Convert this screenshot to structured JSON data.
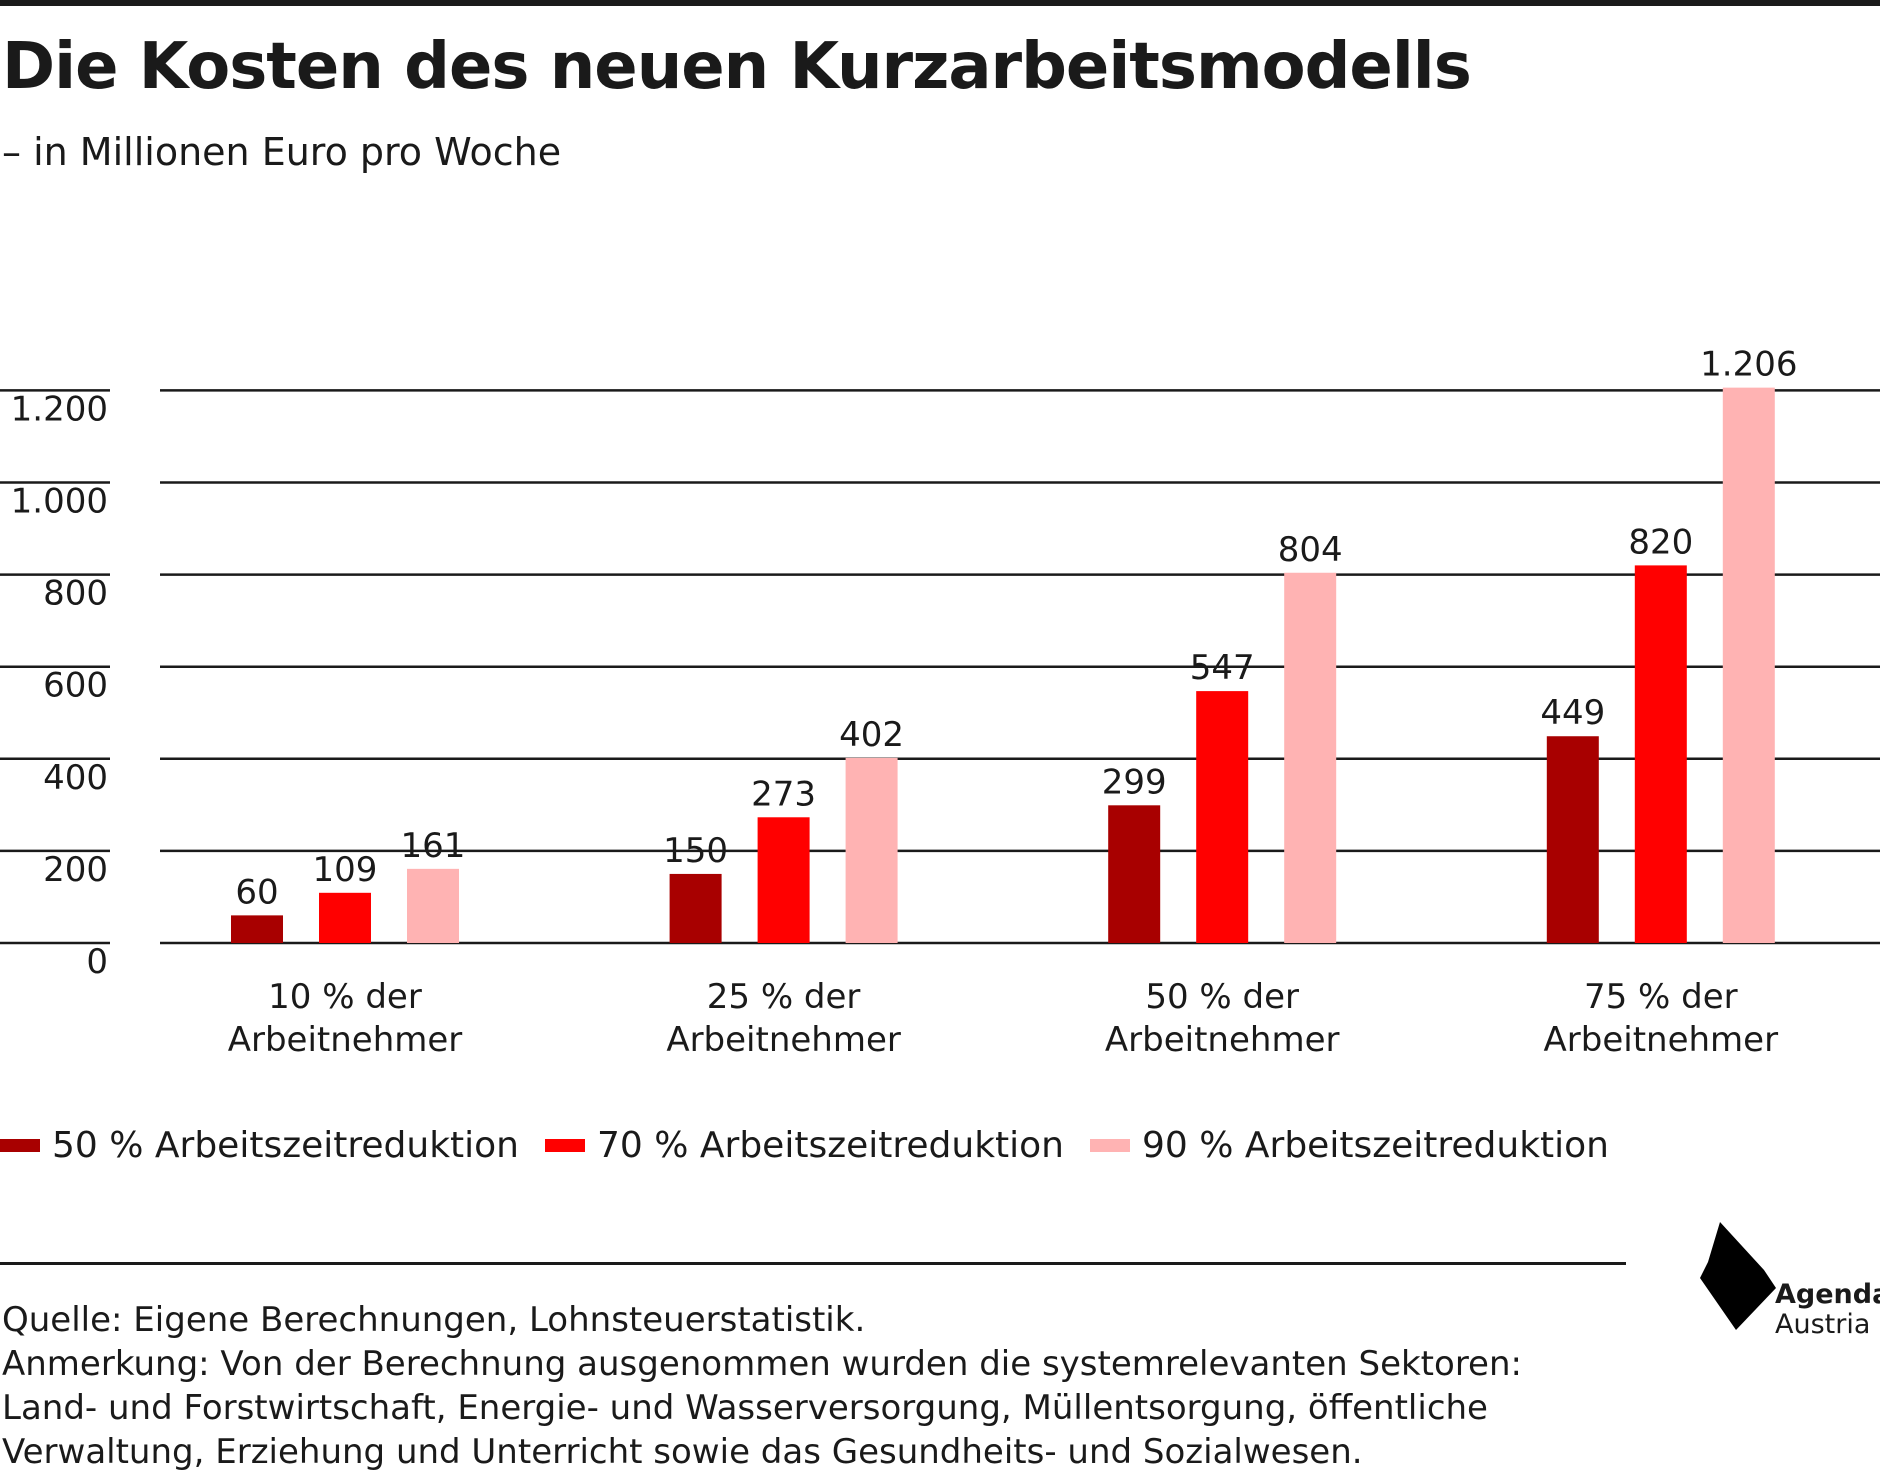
{
  "header": {
    "title": "Die Kosten des neuen Kurzarbeitsmodells",
    "subtitle": "– in Millionen Euro pro Woche"
  },
  "chart_data": {
    "type": "bar",
    "categories": [
      [
        "10 % der",
        "Arbeitnehmer"
      ],
      [
        "25 % der",
        "Arbeitnehmer"
      ],
      [
        "50 % der",
        "Arbeitnehmer"
      ],
      [
        "75 % der",
        "Arbeitnehmer"
      ]
    ],
    "series": [
      {
        "name": "50 % Arbeitszeitreduktion",
        "color": "#a80000",
        "values": [
          60,
          150,
          299,
          449
        ]
      },
      {
        "name": "70 % Arbeitszeitreduktion",
        "color": "#ff0000",
        "values": [
          109,
          273,
          547,
          820
        ]
      },
      {
        "name": "90 % Arbeitszeitreduktion",
        "color": "#ffb3b3",
        "values": [
          161,
          402,
          804,
          1206
        ]
      }
    ],
    "value_labels": [
      [
        "60",
        "150",
        "299",
        "449"
      ],
      [
        "109",
        "273",
        "547",
        "820"
      ],
      [
        "161",
        "402",
        "804",
        "1.206"
      ]
    ],
    "yticks": [
      0,
      200,
      400,
      600,
      800,
      1000,
      1200
    ],
    "ytick_labels": [
      "0",
      "200",
      "400",
      "600",
      "800",
      "1.000",
      "1.200"
    ],
    "ylim": [
      0,
      1206
    ],
    "grid": true,
    "legend_position": "bottom-left"
  },
  "footer": {
    "source": "Quelle: Eigene Berechnungen, Lohnsteuerstatistik.",
    "note_lines": [
      "Anmerkung: Von der Berechnung ausgenommen wurden die systemrelevanten Sektoren:",
      "Land- und Forstwirtschaft, Energie- und Wasserversorgung, Müllentsorgung, öffentliche",
      "Verwaltung, Erziehung und Unterricht sowie das Gesundheits- und Sozialwesen."
    ]
  },
  "logo": {
    "name": "Agenda",
    "sub": "Austria",
    "icon": "agenda-austria-logo-icon"
  },
  "colors": {
    "text": "#1a1a1a",
    "background": "#ffffff"
  }
}
